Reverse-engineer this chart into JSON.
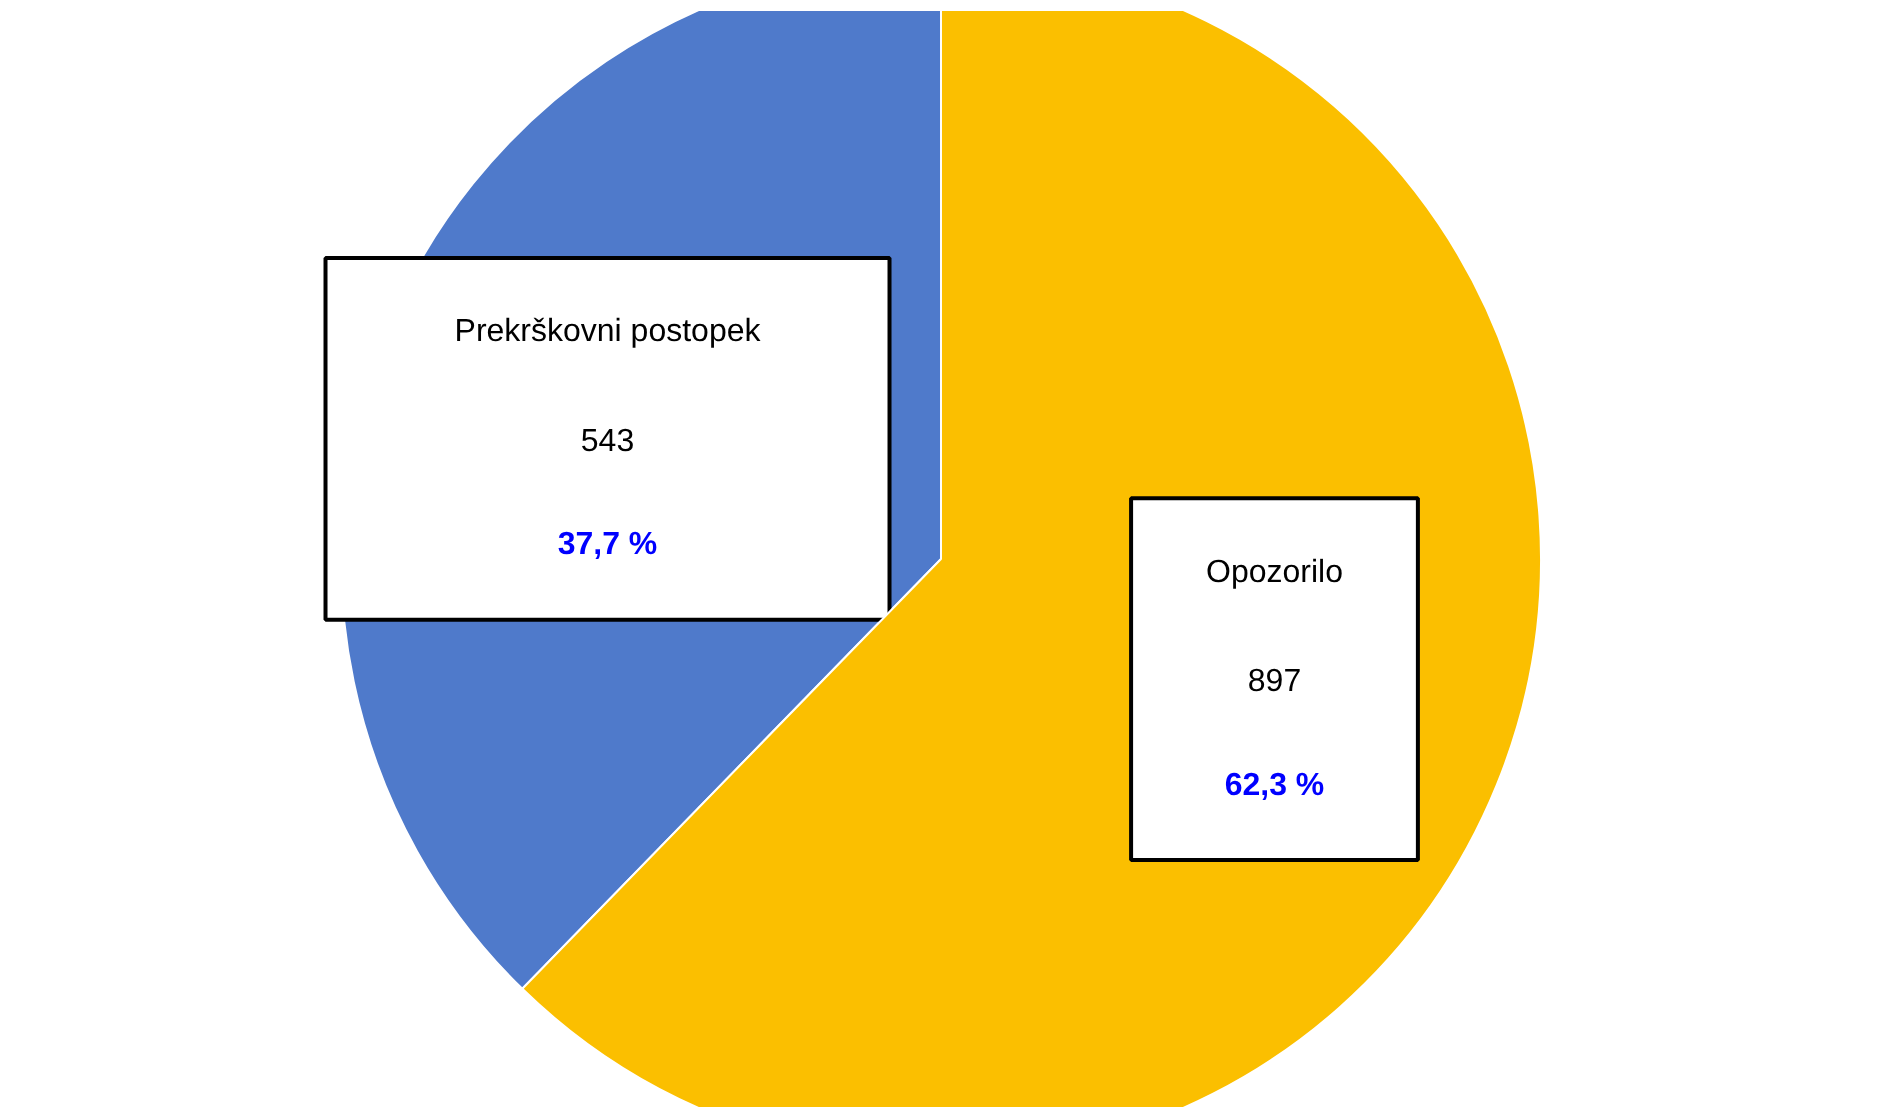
{
  "chart_data": {
    "type": "pie",
    "categories": [
      "Prekrškovni postopek",
      "Opozorilo"
    ],
    "values": [
      543,
      897
    ],
    "colors": [
      "#4f7acb",
      "#fbbf00"
    ],
    "data_labels": true,
    "annotations": [
      "37,7 %",
      "62,3 %"
    ]
  }
}
